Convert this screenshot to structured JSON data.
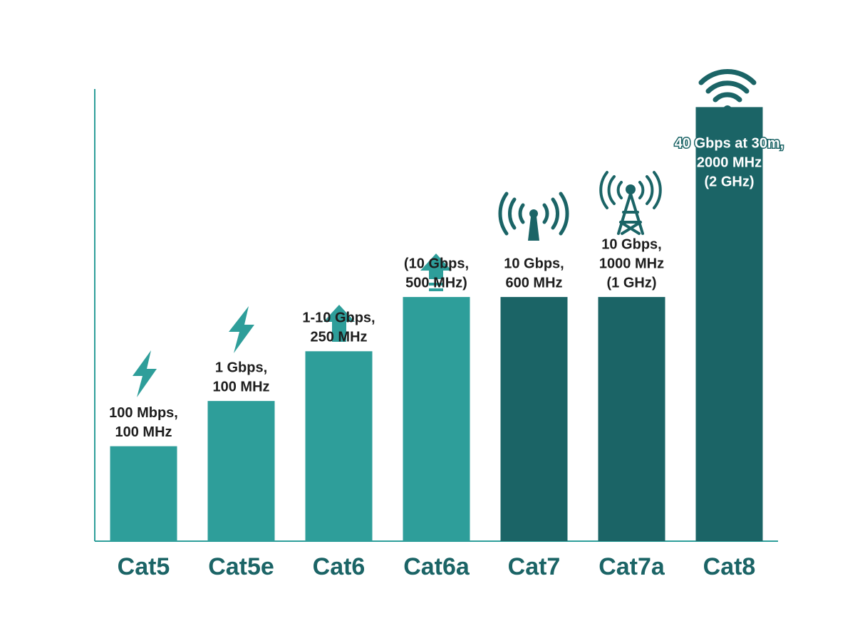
{
  "chart_data": {
    "type": "bar",
    "categories": [
      "Cat5",
      "Cat5e",
      "Cat6",
      "Cat6a",
      "Cat7",
      "Cat7a",
      "Cat8"
    ],
    "values": [
      21,
      31,
      42,
      54,
      54,
      54,
      96
    ],
    "colors": [
      "#2e9e9a",
      "#2e9e9a",
      "#2e9e9a",
      "#2e9e9a",
      "#1b6466",
      "#1b6466",
      "#1b6466"
    ],
    "annotations": [
      [
        "100 Mbps,",
        "100 MHz"
      ],
      [
        "1 Gbps,",
        "100 MHz"
      ],
      [
        "1-10 Gbps,",
        "250 MHz"
      ],
      [
        "(10 Gbps,",
        "500 MHz)"
      ],
      [
        "10 Gbps,",
        "600 MHz"
      ],
      [
        "10 Gbps,",
        "1000 MHz",
        "(1 GHz)"
      ],
      [
        "40 Gbps at 30m,",
        "2000 MHz",
        "(2 GHz)"
      ]
    ],
    "ylim": [
      0,
      100
    ]
  }
}
